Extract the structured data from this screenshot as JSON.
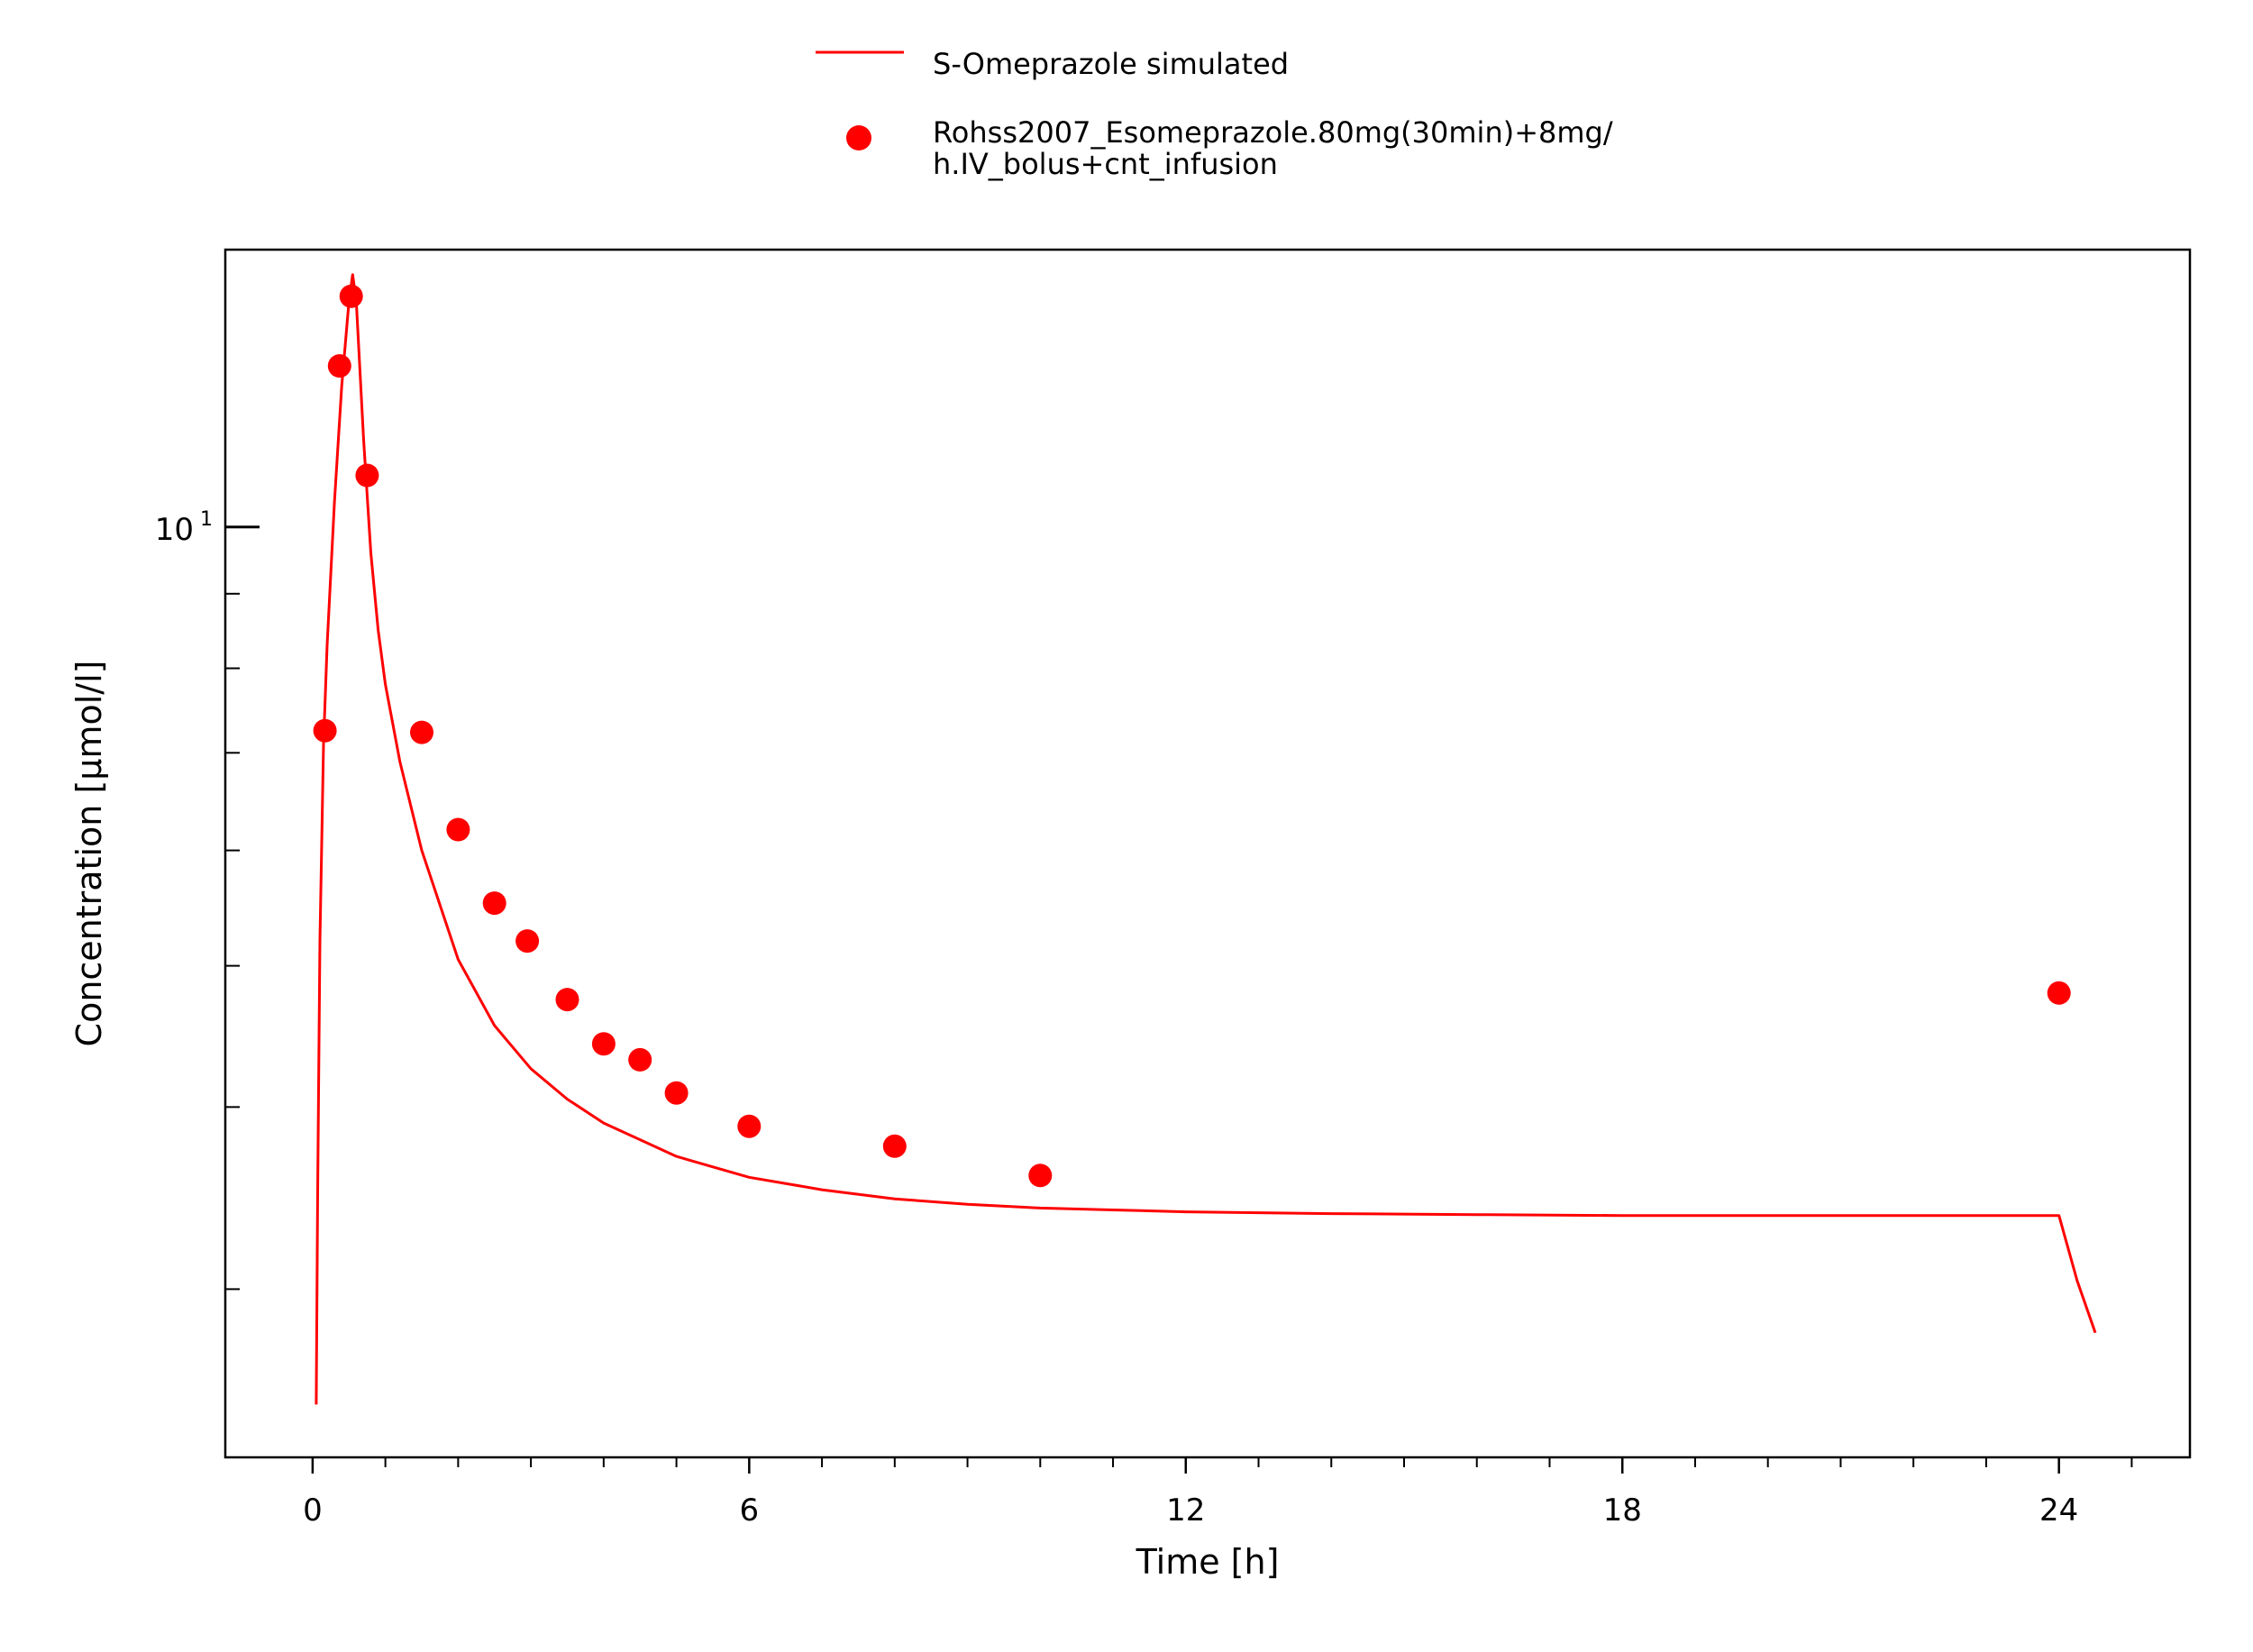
{
  "chart_data": {
    "type": "line",
    "title": "",
    "xlabel": "Time [h]",
    "ylabel": "Concentration [µmol/l]",
    "x_scale": "linear",
    "y_scale": "log",
    "xlim": [
      -1.2,
      25.8
    ],
    "ylim": [
      2.3,
      15.5
    ],
    "x_ticks": [
      0,
      6,
      12,
      18,
      24
    ],
    "x_tick_labels": [
      "0",
      "6",
      "12",
      "18",
      "24"
    ],
    "x_minor_ticks": [
      1,
      2,
      3,
      4,
      5,
      7,
      8,
      9,
      10,
      11,
      13,
      14,
      15,
      16,
      17,
      19,
      20,
      21,
      22,
      23,
      25
    ],
    "y_major_ticks": [
      10
    ],
    "y_major_tick_labels": [
      {
        "base": "10",
        "exp": "1"
      }
    ],
    "y_minor_ticks": [
      3,
      4,
      5,
      6,
      7,
      8,
      9
    ],
    "grid": false,
    "legend_position": "top-center",
    "series": [
      {
        "name": "S-Omeprazole simulated",
        "kind": "line",
        "color": "#ff0000",
        "x": [
          0.05,
          0.07,
          0.1,
          0.15,
          0.2,
          0.3,
          0.4,
          0.5,
          0.55,
          0.6,
          0.7,
          0.8,
          0.9,
          1.0,
          1.2,
          1.5,
          2.0,
          2.5,
          3.0,
          3.5,
          4.0,
          5.0,
          6.0,
          7.0,
          8.0,
          9.0,
          10.0,
          11.0,
          12.0,
          13.0,
          14.0,
          16.0,
          18.0,
          20.0,
          22.0,
          23.0,
          24.0,
          24.25,
          24.5
        ],
        "y": [
          2.5,
          3.5,
          5.2,
          7.1,
          8.3,
          10.4,
          12.5,
          14.3,
          14.9,
          14.3,
          11.5,
          9.6,
          8.5,
          7.8,
          6.9,
          6.0,
          5.05,
          4.55,
          4.25,
          4.05,
          3.9,
          3.7,
          3.58,
          3.51,
          3.46,
          3.43,
          3.41,
          3.4,
          3.39,
          3.385,
          3.38,
          3.375,
          3.37,
          3.37,
          3.37,
          3.37,
          3.37,
          3.04,
          2.8
        ]
      },
      {
        "name": "Rohss2007_Esomeprazole.80mg(30min)+8mg/h.IV_bolus+cnt_infusion",
        "name_lines": [
          "Rohss2007_Esomeprazole.80mg(30min)+8mg/",
          "h.IV_bolus+cnt_infusion"
        ],
        "kind": "scatter",
        "color": "#ff0000",
        "x": [
          0.17,
          0.37,
          0.53,
          0.75,
          1.5,
          2.0,
          2.5,
          2.95,
          3.5,
          4.0,
          4.5,
          5.0,
          6.0,
          8.0,
          10.0,
          24.0
        ],
        "y": [
          7.25,
          12.9,
          14.4,
          10.85,
          7.23,
          6.2,
          5.52,
          5.2,
          4.74,
          4.42,
          4.31,
          4.09,
          3.88,
          3.76,
          3.59,
          4.79
        ]
      }
    ]
  }
}
